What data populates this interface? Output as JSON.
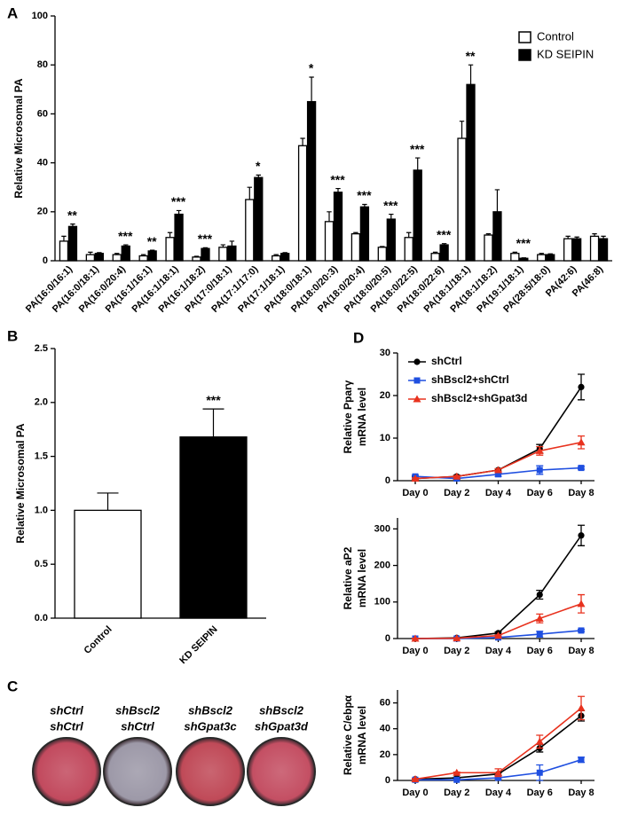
{
  "chart_data": [
    {
      "type": "bar",
      "panel": "A",
      "ylabel": "Relative Microsomal PA",
      "categories": [
        "PA(16:0/16:1)",
        "PA(16:0/18:1)",
        "PA(16:0/20:4)",
        "PA(16:1/16:1)",
        "PA(16:1/18:1)",
        "PA(16:1/18:2)",
        "PA(17:0/18:1)",
        "PA(17:1/17:0)",
        "PA(17:1/18:1)",
        "PA(18:0/18:1)",
        "PA(18:0/20:3)",
        "PA(18:0/20:4)",
        "PA(18:0/20:5)",
        "PA(18:0/22:5)",
        "PA(18:0/22:6)",
        "PA(18:1/18:1)",
        "PA(18:1/18:2)",
        "PA(19:1/18:1)",
        "PA(28:5/18:0)",
        "PA(42:6)",
        "PA(46:8)"
      ],
      "series": [
        {
          "name": "Control",
          "color": "#ffffff",
          "values": [
            8,
            2.5,
            2.5,
            2,
            9.5,
            1.5,
            5.5,
            25,
            2,
            47,
            16,
            11,
            5.5,
            9.5,
            3,
            50,
            10.5,
            3,
            2.5,
            9,
            10
          ],
          "errors": [
            2,
            1,
            0.5,
            0.5,
            2,
            0.3,
            1,
            5,
            0.5,
            3,
            4,
            0.5,
            0.3,
            2,
            0.5,
            7,
            0.5,
            0.5,
            0.5,
            1,
            1
          ]
        },
        {
          "name": "KD SEIPIN",
          "color": "#000000",
          "values": [
            14,
            3,
            6,
            4,
            19,
            5,
            6,
            34,
            3,
            65,
            28,
            22,
            17,
            37,
            6.5,
            72,
            20,
            1,
            2.5,
            9,
            9
          ],
          "errors": [
            1,
            0.3,
            0.5,
            0.3,
            1.5,
            0.3,
            2,
            1,
            0.3,
            10,
            1.5,
            1,
            2,
            5,
            0.5,
            8,
            9,
            0.2,
            0.3,
            0.7,
            1
          ]
        }
      ],
      "annotations": [
        "**",
        null,
        "***",
        "**",
        "***",
        "***",
        null,
        "*",
        null,
        "*",
        "***",
        "***",
        "***",
        "***",
        "***",
        "**",
        null,
        "***",
        null,
        null,
        null
      ],
      "ylim": [
        0,
        100
      ],
      "yticks": [
        0,
        20,
        40,
        60,
        80,
        100
      ],
      "legend": "upper right"
    },
    {
      "type": "bar",
      "panel": "B",
      "ylabel": "Relative Microsomal PA",
      "categories": [
        "Control",
        "KD SEIPIN"
      ],
      "values": [
        1.0,
        1.68
      ],
      "errors": [
        0.16,
        0.26
      ],
      "colors": [
        "#ffffff",
        "#000000"
      ],
      "annotations": [
        null,
        "***"
      ],
      "ylim": [
        0,
        2.5
      ],
      "yticks": [
        {
          "value": 0,
          "label": "0.0"
        },
        {
          "value": 0.5,
          "label": "0.5"
        },
        {
          "value": 1,
          "label": "1.0"
        },
        {
          "value": 1.5,
          "label": "1.5"
        },
        {
          "value": 2,
          "label": "2.0"
        },
        {
          "value": 2.5,
          "label": "2.5"
        }
      ]
    },
    {
      "type": "line",
      "panel": "D",
      "ylabel": [
        "Relative Pparγ",
        "mRNA level"
      ],
      "categories": [
        "Day 0",
        "Day 2",
        "Day 4",
        "Day 6",
        "Day 8"
      ],
      "series": [
        {
          "name": "shCtrl",
          "color": "#000000",
          "marker": "circle",
          "values": [
            0.5,
            1,
            2.5,
            7.5,
            22
          ],
          "errors": [
            0.5,
            0.3,
            0.3,
            1,
            3
          ]
        },
        {
          "name": "shBscl2+shCtrl",
          "color": "#1f4fe0",
          "marker": "square",
          "values": [
            1,
            0.5,
            1.5,
            2.5,
            3
          ],
          "errors": [
            0.3,
            0.2,
            0.5,
            1,
            0.3
          ]
        },
        {
          "name": "shBscl2+shGpat3d",
          "color": "#e8321e",
          "marker": "triangle",
          "values": [
            0.5,
            1,
            2.5,
            7,
            9
          ],
          "errors": [
            0.2,
            0.2,
            0.3,
            1,
            1.5
          ]
        }
      ],
      "ylim": [
        0,
        30
      ],
      "yticks": [
        0,
        10,
        20,
        30
      ],
      "legend": "upper left"
    },
    {
      "type": "line",
      "ylabel": [
        "Relative aP2",
        "mRNA level"
      ],
      "categories": [
        "Day 0",
        "Day 2",
        "Day 4",
        "Day 6",
        "Day 8"
      ],
      "series": [
        {
          "color": "#000000",
          "marker": "circle",
          "values": [
            0,
            2,
            15,
            120,
            282
          ],
          "errors": [
            1,
            1,
            3,
            12,
            28
          ]
        },
        {
          "color": "#1f4fe0",
          "marker": "square",
          "values": [
            0,
            0,
            3,
            12,
            22
          ],
          "errors": [
            1,
            1,
            1,
            8,
            3
          ]
        },
        {
          "color": "#e8321e",
          "marker": "triangle",
          "values": [
            0,
            1,
            8,
            55,
            95
          ],
          "errors": [
            1,
            1,
            2,
            12,
            25
          ]
        }
      ],
      "ylim": [
        0,
        330
      ],
      "yticks": [
        0,
        100,
        200,
        300
      ]
    },
    {
      "type": "line",
      "ylabel": [
        "Relative C/ebpα",
        "mRNA level"
      ],
      "categories": [
        "Day 0",
        "Day 2",
        "Day 4",
        "Day 6",
        "Day 8"
      ],
      "series": [
        {
          "color": "#000000",
          "marker": "circle",
          "values": [
            1,
            2,
            5,
            25,
            50
          ],
          "errors": [
            0.5,
            0.5,
            1,
            3,
            4
          ]
        },
        {
          "color": "#1f4fe0",
          "marker": "square",
          "values": [
            0.5,
            0.5,
            2,
            6,
            16
          ],
          "errors": [
            0.3,
            0.3,
            1,
            6,
            2
          ]
        },
        {
          "color": "#e8321e",
          "marker": "triangle",
          "values": [
            1,
            6,
            6,
            30,
            56
          ],
          "errors": [
            0.5,
            0.5,
            3,
            5,
            9
          ]
        }
      ],
      "ylim": [
        0,
        70
      ],
      "yticks": [
        0,
        20,
        40,
        60
      ]
    }
  ],
  "plates": {
    "panel": "C",
    "wells": [
      {
        "lines": [
          "shCtrl",
          "shCtrl"
        ],
        "color": "#c24a5e"
      },
      {
        "lines": [
          "shBscl2",
          "shCtrl"
        ],
        "color": "#9d99a8"
      },
      {
        "lines": [
          "shBscl2",
          "shGpat3c"
        ],
        "color": "#c04a58"
      },
      {
        "lines": [
          "shBscl2",
          "shGpat3d"
        ],
        "color": "#c44f63"
      }
    ]
  }
}
